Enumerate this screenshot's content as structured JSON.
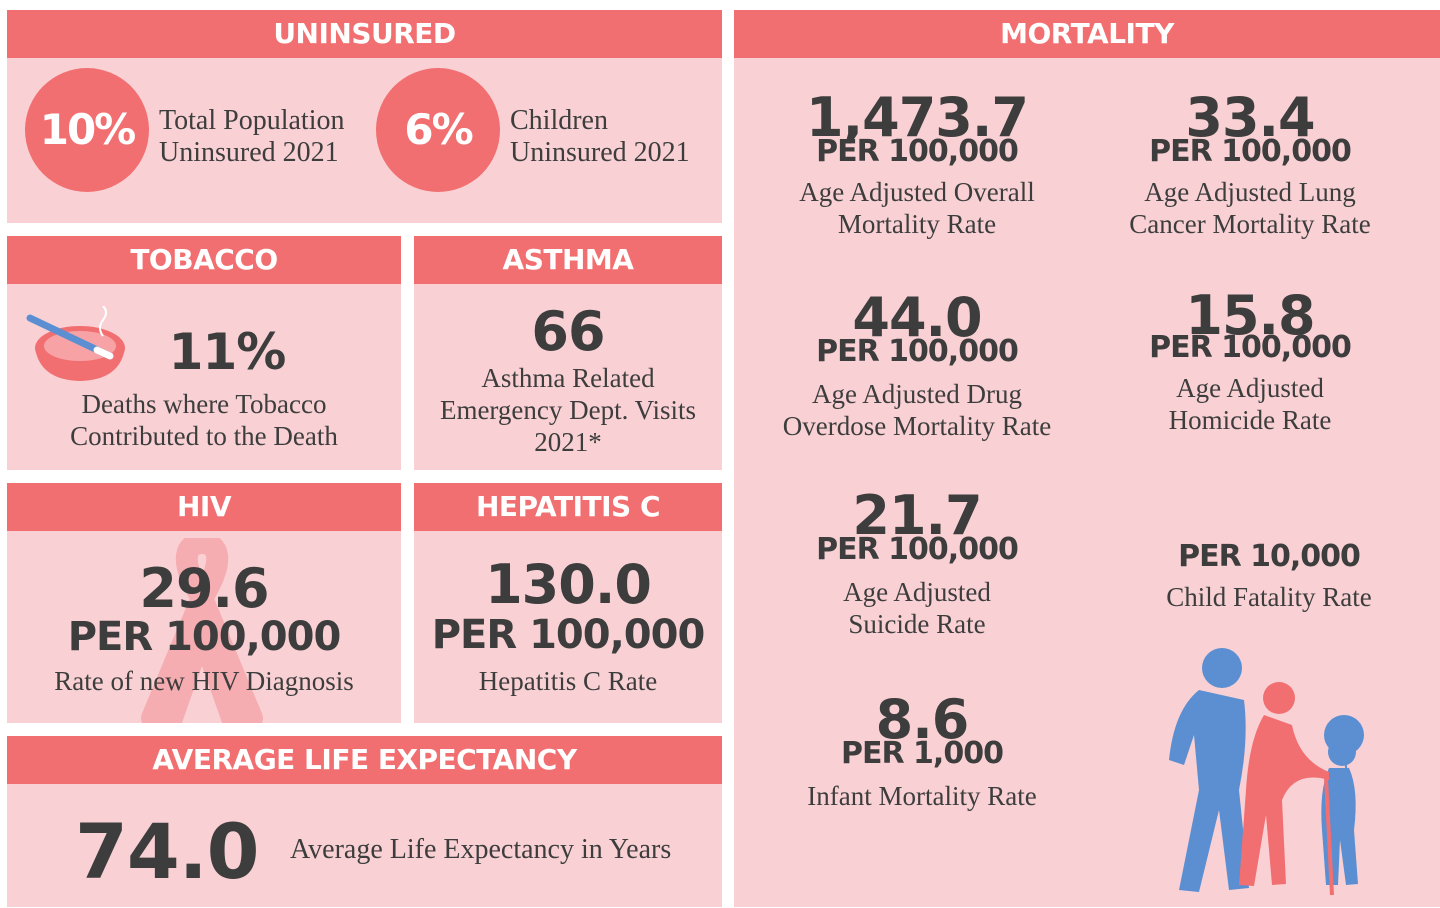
{
  "uninsured": {
    "title": "UNINSURED",
    "items": [
      {
        "value": "10%",
        "label_lines": [
          "Total Population",
          "Uninsured 2021"
        ]
      },
      {
        "value": "6%",
        "label_lines": [
          "Children",
          "Uninsured 2021"
        ]
      }
    ]
  },
  "tobacco": {
    "title": "TOBACCO",
    "value": "11%",
    "label_lines": [
      "Deaths where Tobacco",
      "Contributed to the Death"
    ]
  },
  "asthma": {
    "title": "ASTHMA",
    "value": "66",
    "label_lines": [
      "Asthma Related",
      "Emergency Dept. Visits",
      "2021*"
    ]
  },
  "hiv": {
    "title": "HIV",
    "value": "29.6",
    "unit": "PER 100,000",
    "label_lines": [
      "Rate of new HIV Diagnosis"
    ]
  },
  "hepatitis_c": {
    "title": "HEPATITIS C",
    "value": "130.0",
    "unit": "PER 100,000",
    "label_lines": [
      "Hepatitis C Rate"
    ]
  },
  "life_expectancy": {
    "title": "AVERAGE LIFE EXPECTANCY",
    "value": "74.0",
    "label_lines": [
      "Average Life Expectancy in Years"
    ]
  },
  "mortality": {
    "title": "MORTALITY",
    "items": [
      {
        "value": "1,473.7",
        "unit": "PER 100,000",
        "label_lines": [
          "Age Adjusted Overall",
          "Mortality Rate"
        ]
      },
      {
        "value": "33.4",
        "unit": "PER 100,000",
        "label_lines": [
          "Age Adjusted Lung",
          "Cancer Mortality Rate"
        ]
      },
      {
        "value": "44.0",
        "unit": "PER 100,000",
        "label_lines": [
          "Age Adjusted Drug",
          "Overdose Mortality Rate"
        ]
      },
      {
        "value": "15.8",
        "unit": "PER 100,000",
        "label_lines": [
          "Age Adjusted",
          "Homicide Rate"
        ]
      },
      {
        "value": "21.7",
        "unit": "PER 100,000",
        "label_lines": [
          "Age Adjusted",
          "Suicide Rate"
        ]
      },
      {
        "unit": "PER 10,000",
        "label_lines": [
          "Child Fatality Rate"
        ]
      },
      {
        "value": "8.6",
        "unit": "PER 1,000",
        "label_lines": [
          "Infant Mortality Rate"
        ]
      }
    ]
  }
}
